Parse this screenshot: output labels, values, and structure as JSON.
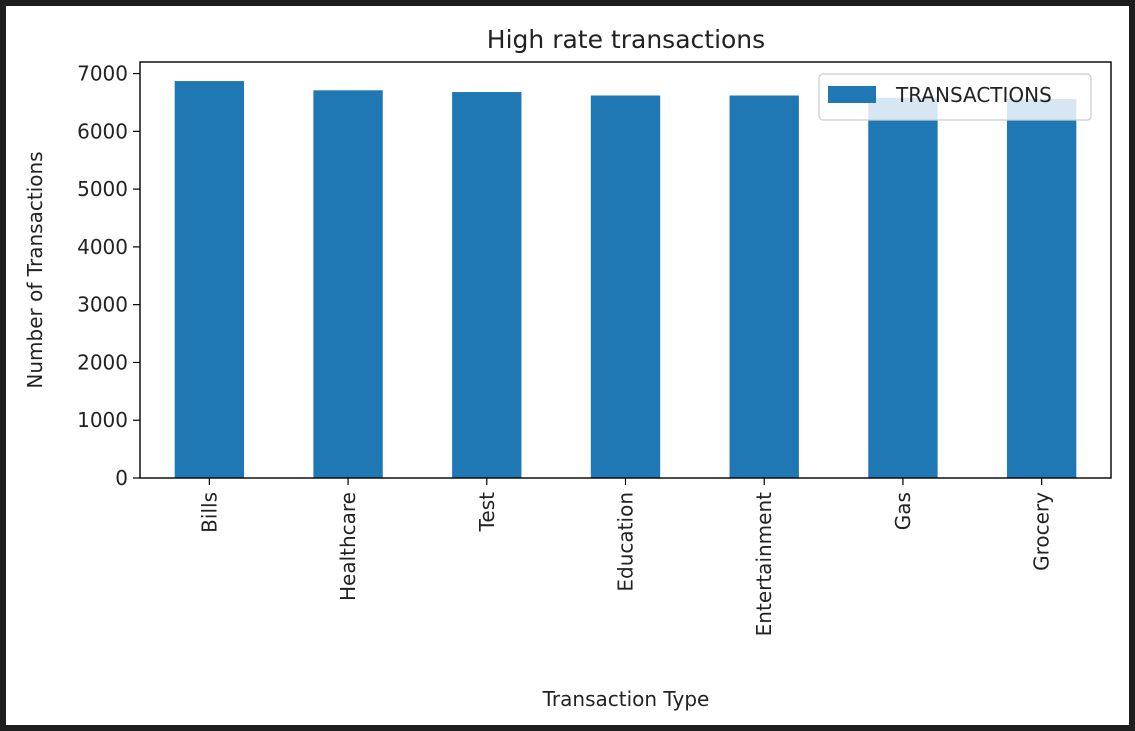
{
  "chart_data": {
    "type": "bar",
    "title": "High rate transactions",
    "xlabel": "Transaction Type",
    "ylabel": "Number of Transactions",
    "categories": [
      "Bills",
      "Healthcare",
      "Test",
      "Education",
      "Entertainment",
      "Gas",
      "Grocery"
    ],
    "series": [
      {
        "name": "TRANSACTIONS",
        "values": [
          6870,
          6710,
          6680,
          6620,
          6620,
          6580,
          6560
        ]
      }
    ],
    "ylim": [
      0,
      7200
    ],
    "yticks": [
      0,
      1000,
      2000,
      3000,
      4000,
      5000,
      6000,
      7000
    ],
    "grid": false,
    "legend_position": "top-right",
    "bar_color": "#1f77b4"
  }
}
